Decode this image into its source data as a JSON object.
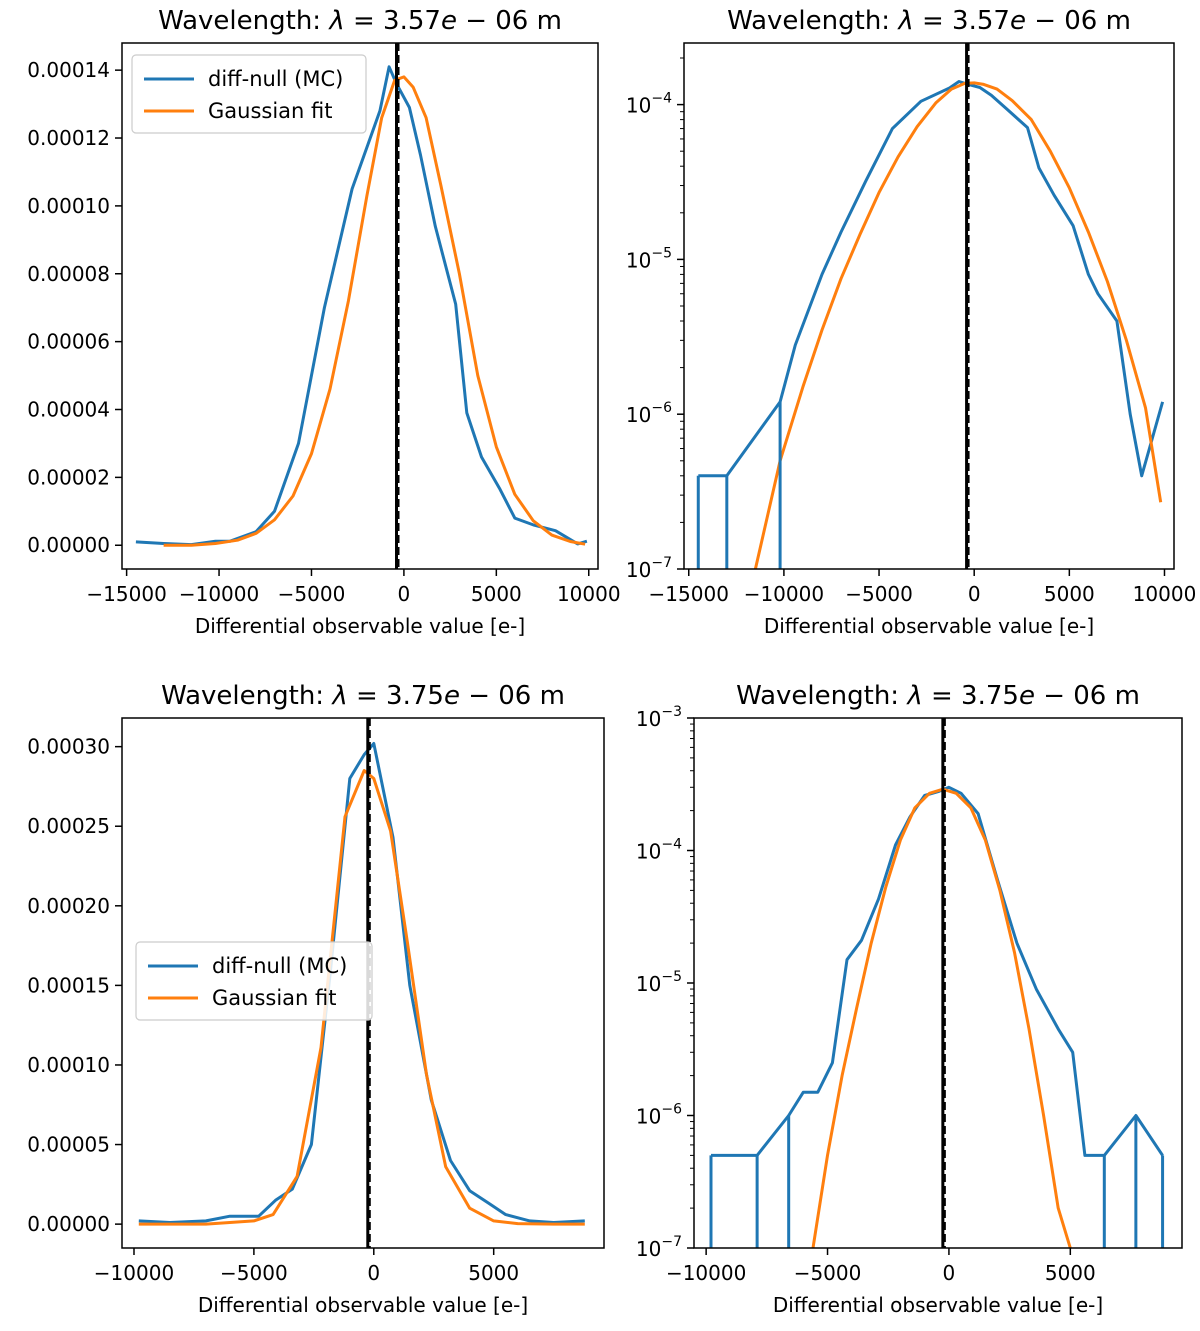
{
  "figure": {
    "title": ""
  },
  "colors": {
    "mc": "#1f77b4",
    "fit": "#ff7f0e",
    "mean_line": "#000000",
    "axes": "#000000"
  },
  "chart_data": [
    {
      "type": "line",
      "id": "a",
      "title": "Wavelength: λ = 3.57e − 06 m",
      "title_parts": {
        "prefix": "Wavelength: ",
        "var": "λ",
        "eq": " = 3.57",
        "e": "e",
        "rest": " − 06 m"
      },
      "xlabel": "Differential observable value [e-]",
      "ylabel": "",
      "yscale": "linear",
      "xlim": [
        -15250,
        10500
      ],
      "ylim": [
        -7e-06,
        0.000148
      ],
      "xticks": [
        -15000,
        -10000,
        -5000,
        0,
        5000,
        10000
      ],
      "xtick_labels": [
        "−15000",
        "−10000",
        "−5000",
        "0",
        "5000",
        "10000"
      ],
      "yticks": [
        0,
        2e-05,
        4e-05,
        6e-05,
        8e-05,
        0.0001,
        0.00012,
        0.00014
      ],
      "ytick_labels": [
        "0.00000",
        "0.00002",
        "0.00004",
        "0.00006",
        "0.00008",
        "0.00010",
        "0.00012",
        "0.00014"
      ],
      "vline": -400,
      "legend": {
        "location": "upper-left",
        "entries": [
          "diff-null (MC)",
          "Gaussian fit"
        ]
      },
      "series": [
        {
          "name": "diff-null (MC)",
          "style": "line",
          "x": [
            -14500,
            -13000,
            -11500,
            -10200,
            -9400,
            -8000,
            -7000,
            -5700,
            -4300,
            -2800,
            -1300,
            -800,
            -400,
            300,
            900,
            1700,
            2800,
            3400,
            4200,
            5200,
            6000,
            7000,
            8200,
            9400,
            9900
          ],
          "y": [
            1e-06,
            5e-07,
            2e-07,
            1.2e-06,
            1.2e-06,
            4e-06,
            1e-05,
            3e-05,
            7e-05,
            0.000105,
            0.000128,
            0.000141,
            0.000136,
            0.000129,
            0.000115,
            9.4e-05,
            7.1e-05,
            3.9e-05,
            2.6e-05,
            1.65e-05,
            8e-06,
            6e-06,
            4.3e-06,
            4e-07,
            1.2e-06
          ]
        },
        {
          "name": "Gaussian fit",
          "style": "line",
          "x": [
            -13000,
            -11500,
            -10200,
            -9000,
            -8000,
            -7000,
            -6000,
            -5000,
            -4000,
            -3000,
            -2000,
            -1200,
            -500,
            0,
            500,
            1200,
            2000,
            3000,
            4000,
            5000,
            6000,
            7000,
            8000,
            9000,
            9800
          ],
          "y": [
            0,
            0,
            5e-07,
            1.5e-06,
            3.5e-06,
            7.5e-06,
            1.45e-05,
            2.7e-05,
            4.6e-05,
            7.2e-05,
            0.000103,
            0.000126,
            0.000137,
            0.000138,
            0.000135,
            0.000126,
            0.000106,
            8e-05,
            5e-05,
            2.9e-05,
            1.5e-05,
            7.2e-06,
            3e-06,
            1.1e-06,
            3e-07
          ]
        }
      ]
    },
    {
      "type": "line",
      "id": "b",
      "title": "Wavelength: λ = 3.57e − 06 m",
      "title_parts": {
        "prefix": "Wavelength: ",
        "var": "λ",
        "eq": " = 3.57",
        "e": "e",
        "rest": " − 06 m"
      },
      "xlabel": "Differential observable value [e-]",
      "ylabel": "",
      "yscale": "log",
      "xlim": [
        -15250,
        10500
      ],
      "ylim": [
        1e-07,
        0.00025
      ],
      "xticks": [
        -15000,
        -10000,
        -5000,
        0,
        5000,
        10000
      ],
      "xtick_labels": [
        "−15000",
        "−10000",
        "−5000",
        "0",
        "5000",
        "10000"
      ],
      "yticks": [
        1e-07,
        1e-06,
        1e-05,
        0.0001
      ],
      "ytick_labels": [
        {
          "base": "10",
          "exp": "−7"
        },
        {
          "base": "10",
          "exp": "−6"
        },
        {
          "base": "10",
          "exp": "−5"
        },
        {
          "base": "10",
          "exp": "−4"
        }
      ],
      "vline": -400,
      "legend": null,
      "series": [
        {
          "name": "diff-null (MC)",
          "style": "step",
          "x": [
            -14500,
            -13000,
            -10200,
            -10200,
            -9400,
            -8000,
            -7000,
            -5700,
            -4300,
            -2800,
            -1300,
            -800,
            -400,
            300,
            900,
            1700,
            2800,
            3400,
            4200,
            5200,
            6000,
            6500,
            7500,
            8200,
            8800,
            9900
          ],
          "y": [
            4e-07,
            4e-07,
            1.2e-06,
            1.2e-06,
            2.8e-06,
            8e-06,
            1.5e-05,
            3.2e-05,
            7e-05,
            0.000105,
            0.000128,
            0.000141,
            0.000136,
            0.000129,
            0.000115,
            9.4e-05,
            7.1e-05,
            3.9e-05,
            2.6e-05,
            1.65e-05,
            8e-06,
            6e-06,
            4e-06,
            1e-06,
            4e-07,
            1.2e-06
          ]
        },
        {
          "name": "Gaussian fit",
          "style": "line",
          "x": [
            -11500,
            -10200,
            -9000,
            -8000,
            -7000,
            -6000,
            -5000,
            -4000,
            -3000,
            -2000,
            -1200,
            -500,
            0,
            500,
            1200,
            2000,
            3000,
            4000,
            5000,
            6000,
            7000,
            8000,
            9000,
            9800
          ],
          "y": [
            1e-07,
            5e-07,
            1.5e-06,
            3.5e-06,
            7.5e-06,
            1.45e-05,
            2.7e-05,
            4.6e-05,
            7.2e-05,
            0.000103,
            0.000126,
            0.000137,
            0.000138,
            0.000135,
            0.000126,
            0.000106,
            8e-05,
            5e-05,
            2.9e-05,
            1.5e-05,
            7.2e-06,
            3e-06,
            1.1e-06,
            2.7e-07
          ]
        }
      ]
    },
    {
      "type": "line",
      "id": "c",
      "title": "Wavelength: λ = 3.75e − 06 m",
      "title_parts": {
        "prefix": "Wavelength: ",
        "var": "λ",
        "eq": " = 3.75",
        "e": "e",
        "rest": " − 06 m"
      },
      "xlabel": "Differential observable value [e-]",
      "ylabel": "",
      "yscale": "linear",
      "xlim": [
        -10500,
        9600
      ],
      "ylim": [
        -1.5e-05,
        0.000318
      ],
      "xticks": [
        -10000,
        -5000,
        0,
        5000
      ],
      "xtick_labels": [
        "−10000",
        "−5000",
        "0",
        "5000"
      ],
      "yticks": [
        0,
        5e-05,
        0.0001,
        0.00015,
        0.0002,
        0.00025,
        0.0003
      ],
      "ytick_labels": [
        "0.00000",
        "0.00005",
        "0.00010",
        "0.00015",
        "0.00020",
        "0.00025",
        "0.00030"
      ],
      "vline": -250,
      "legend": {
        "location": "center-left",
        "entries": [
          "diff-null (MC)",
          "Gaussian fit"
        ]
      },
      "series": [
        {
          "name": "diff-null (MC)",
          "style": "line",
          "x": [
            -9800,
            -8500,
            -7000,
            -6000,
            -4800,
            -4100,
            -3400,
            -2600,
            -1800,
            -1000,
            -400,
            0,
            800,
            1500,
            2400,
            3200,
            4000,
            4800,
            5500,
            6500,
            7500,
            8800
          ],
          "y": [
            2e-06,
            1e-06,
            2e-06,
            5e-06,
            5e-06,
            1.5e-05,
            2.2e-05,
            5e-05,
            0.00016,
            0.00028,
            0.000295,
            0.000302,
            0.000243,
            0.00015,
            7.8e-05,
            4e-05,
            2.1e-05,
            1.3e-05,
            6e-06,
            2e-06,
            1e-06,
            2e-06
          ]
        },
        {
          "name": "Gaussian fit",
          "style": "line",
          "x": [
            -9800,
            -7000,
            -5000,
            -4200,
            -3200,
            -2200,
            -1200,
            -400,
            0,
            700,
            1400,
            2200,
            3000,
            4000,
            5000,
            6000,
            7500,
            8800
          ],
          "y": [
            0,
            0,
            2e-06,
            6e-06,
            3e-05,
            0.000111,
            0.000256,
            0.000285,
            0.00028,
            0.000247,
            0.000177,
            9.4e-05,
            3.6e-05,
            1e-05,
            2e-06,
            3e-07,
            0,
            0
          ]
        }
      ]
    },
    {
      "type": "line",
      "id": "d",
      "title": "Wavelength: λ = 3.75e − 06 m",
      "title_parts": {
        "prefix": "Wavelength: ",
        "var": "λ",
        "eq": " = 3.75",
        "e": "e",
        "rest": " − 06 m"
      },
      "xlabel": "Differential observable value [e-]",
      "ylabel": "",
      "yscale": "log",
      "xlim": [
        -10500,
        9600
      ],
      "ylim": [
        1e-07,
        0.001
      ],
      "xticks": [
        -10000,
        -5000,
        0,
        5000
      ],
      "xtick_labels": [
        "−10000",
        "−5000",
        "0",
        "5000"
      ],
      "yticks": [
        1e-07,
        1e-06,
        1e-05,
        0.0001,
        0.001
      ],
      "ytick_labels": [
        {
          "base": "10",
          "exp": "−7"
        },
        {
          "base": "10",
          "exp": "−6"
        },
        {
          "base": "10",
          "exp": "−5"
        },
        {
          "base": "10",
          "exp": "−4"
        },
        {
          "base": "10",
          "exp": "−3"
        }
      ],
      "vline": -250,
      "legend": null,
      "series": [
        {
          "name": "diff-null (MC)",
          "style": "step",
          "x": [
            -9800,
            -7900,
            -6600,
            -6000,
            -5400,
            -4800,
            -4200,
            -3600,
            -2900,
            -2200,
            -1600,
            -1000,
            -400,
            0,
            500,
            1200,
            2000,
            2800,
            3600,
            4500,
            5100,
            5600,
            6400,
            7700,
            8800
          ],
          "y": [
            5e-07,
            5e-07,
            1e-06,
            1.5e-06,
            1.5e-06,
            2.5e-06,
            1.5e-05,
            2.1e-05,
            4.3e-05,
            0.00011,
            0.00018,
            0.00026,
            0.00028,
            0.0003,
            0.00027,
            0.00019,
            6e-05,
            2e-05,
            9e-06,
            4.5e-06,
            3e-06,
            5e-07,
            5e-07,
            1e-06,
            5e-07
          ]
        },
        {
          "name": "Gaussian fit",
          "style": "line",
          "x": [
            -5600,
            -5000,
            -4400,
            -3800,
            -3200,
            -2600,
            -2000,
            -1400,
            -800,
            -250,
            300,
            900,
            1500,
            2100,
            2700,
            3300,
            3900,
            4500,
            5000,
            5300
          ],
          "y": [
            1e-07,
            5e-07,
            2e-06,
            6.5e-06,
            2e-05,
            5.3e-05,
            0.00012,
            0.00021,
            0.00027,
            0.00029,
            0.00027,
            0.00021,
            0.00012,
            5e-05,
            1.7e-05,
            4.5e-06,
            1e-06,
            2e-07,
            1e-07,
            5e-08
          ]
        }
      ]
    }
  ]
}
